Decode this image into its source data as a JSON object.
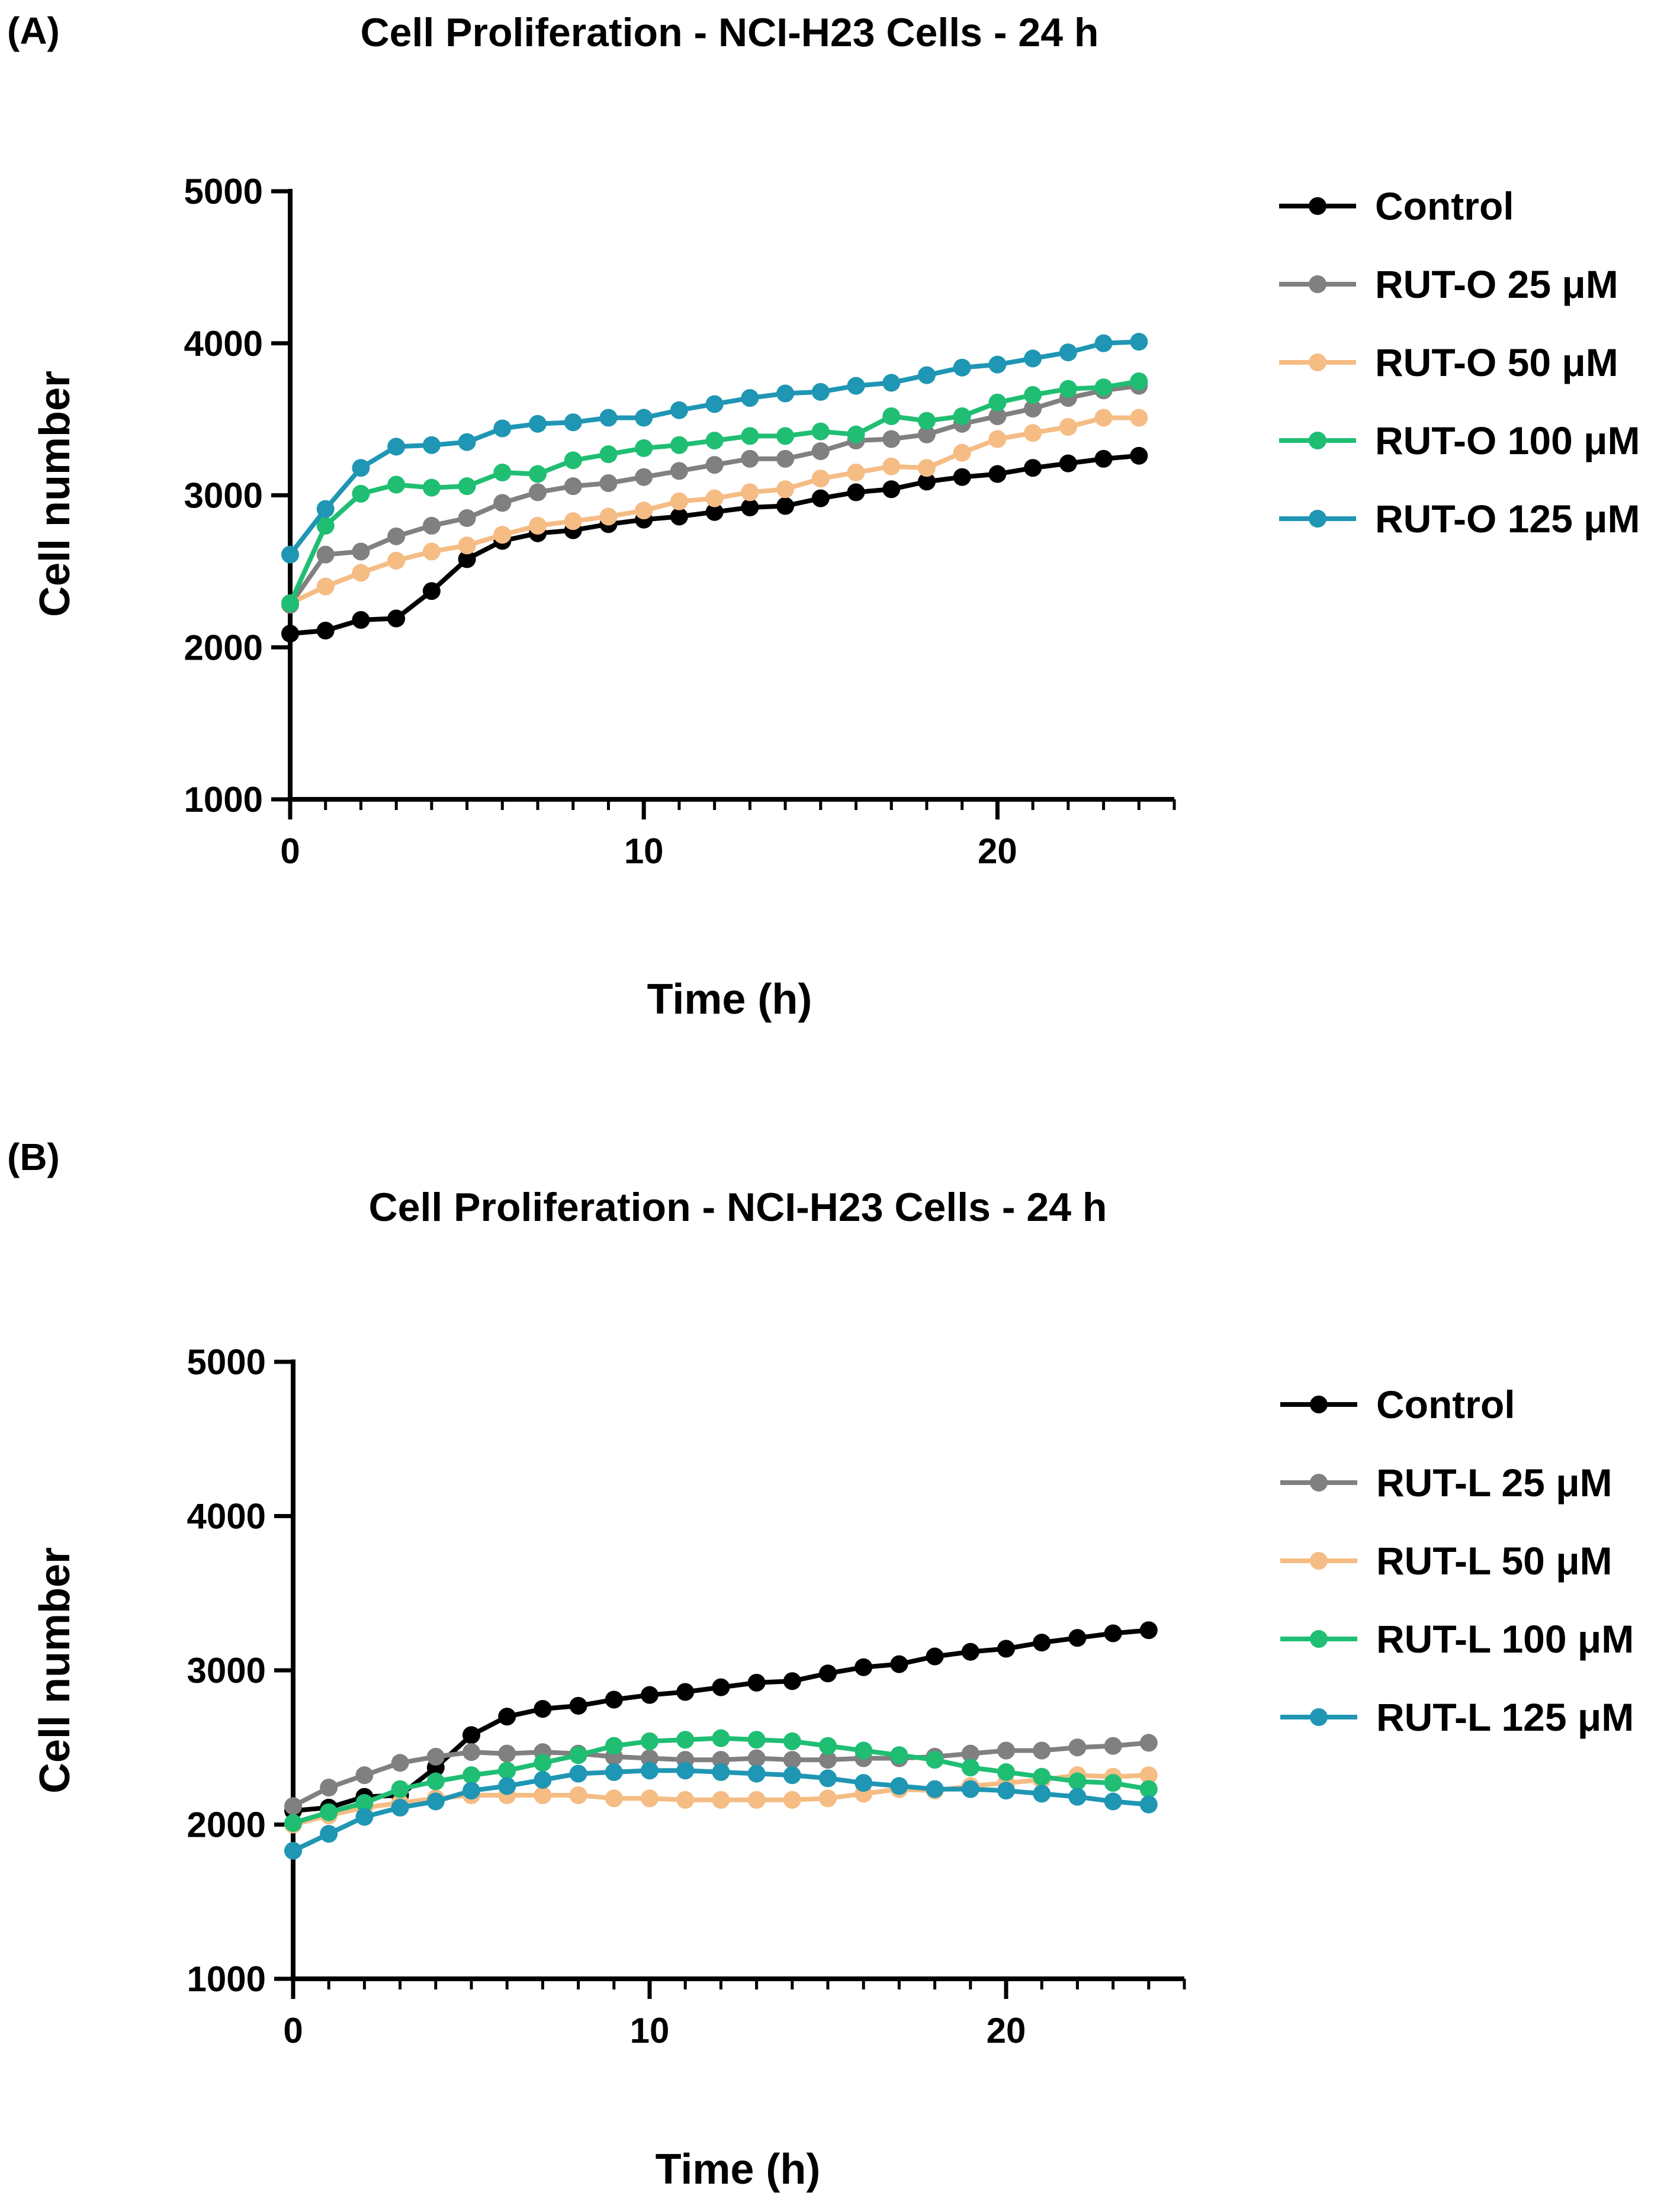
{
  "chart_data": [
    {
      "type": "line",
      "panel_label": "(A)",
      "title": "Cell Proliferation - NCI-H23 Cells - 24 h",
      "xlabel": "Time (h)",
      "ylabel": "Cell number",
      "xlim": [
        0,
        25
      ],
      "ylim": [
        1000,
        5000
      ],
      "xticks": [
        0,
        10,
        20
      ],
      "yticks": [
        1000,
        2000,
        3000,
        4000,
        5000
      ],
      "x": [
        0,
        1,
        2,
        3,
        4,
        5,
        6,
        7,
        8,
        9,
        10,
        11,
        12,
        13,
        14,
        15,
        16,
        17,
        18,
        19,
        20,
        21,
        22,
        23,
        24
      ],
      "legend_position": "right",
      "series": [
        {
          "name": "Control",
          "color": "#000000",
          "values": [
            2090,
            2110,
            2180,
            2190,
            2370,
            2580,
            2700,
            2750,
            2770,
            2810,
            2840,
            2860,
            2890,
            2920,
            2930,
            2980,
            3020,
            3040,
            3090,
            3120,
            3140,
            3180,
            3210,
            3240,
            3260
          ]
        },
        {
          "name": "RUT-O 25 μM",
          "color": "#808080",
          "values": [
            2280,
            2610,
            2630,
            2730,
            2800,
            2850,
            2950,
            3020,
            3060,
            3080,
            3120,
            3160,
            3200,
            3240,
            3240,
            3290,
            3360,
            3370,
            3400,
            3470,
            3520,
            3570,
            3640,
            3690,
            3720
          ]
        },
        {
          "name": "RUT-O 50 μM",
          "color": "#f5bc84",
          "values": [
            2290,
            2400,
            2490,
            2570,
            2630,
            2670,
            2740,
            2800,
            2830,
            2860,
            2900,
            2960,
            2980,
            3020,
            3040,
            3110,
            3150,
            3190,
            3180,
            3280,
            3370,
            3410,
            3450,
            3510,
            3510
          ]
        },
        {
          "name": "RUT-O 100 μM",
          "color": "#1fbe73",
          "values": [
            2290,
            2800,
            3010,
            3070,
            3050,
            3060,
            3150,
            3140,
            3230,
            3270,
            3310,
            3330,
            3360,
            3390,
            3390,
            3420,
            3400,
            3520,
            3490,
            3520,
            3610,
            3660,
            3700,
            3710,
            3750
          ]
        },
        {
          "name": "RUT-O 125 μM",
          "color": "#1f96b3",
          "values": [
            2610,
            2910,
            3180,
            3320,
            3330,
            3350,
            3440,
            3470,
            3480,
            3510,
            3510,
            3560,
            3600,
            3640,
            3670,
            3680,
            3720,
            3740,
            3790,
            3840,
            3860,
            3900,
            3940,
            4000,
            4010
          ]
        }
      ]
    },
    {
      "type": "line",
      "panel_label": "(B)",
      "title": "Cell Proliferation - NCI-H23 Cells - 24 h",
      "xlabel": "Time (h)",
      "ylabel": "Cell number",
      "xlim": [
        0,
        25
      ],
      "ylim": [
        1000,
        5000
      ],
      "xticks": [
        0,
        10,
        20
      ],
      "yticks": [
        1000,
        2000,
        3000,
        4000,
        5000
      ],
      "x": [
        0,
        1,
        2,
        3,
        4,
        5,
        6,
        7,
        8,
        9,
        10,
        11,
        12,
        13,
        14,
        15,
        16,
        17,
        18,
        19,
        20,
        21,
        22,
        23,
        24
      ],
      "legend_position": "right",
      "series": [
        {
          "name": "Control",
          "color": "#000000",
          "values": [
            2090,
            2110,
            2180,
            2190,
            2370,
            2580,
            2700,
            2750,
            2770,
            2810,
            2840,
            2860,
            2890,
            2920,
            2930,
            2980,
            3020,
            3040,
            3090,
            3120,
            3140,
            3180,
            3210,
            3240,
            3260
          ]
        },
        {
          "name": "RUT-L 25 μM",
          "color": "#808080",
          "values": [
            2120,
            2240,
            2320,
            2400,
            2440,
            2470,
            2460,
            2470,
            2460,
            2440,
            2430,
            2420,
            2420,
            2430,
            2420,
            2420,
            2430,
            2430,
            2440,
            2460,
            2480,
            2480,
            2500,
            2510,
            2530
          ]
        },
        {
          "name": "RUT-L 50 μM",
          "color": "#f5bc84",
          "values": [
            2000,
            2060,
            2110,
            2140,
            2170,
            2190,
            2190,
            2190,
            2190,
            2170,
            2170,
            2160,
            2160,
            2160,
            2160,
            2170,
            2200,
            2230,
            2220,
            2250,
            2270,
            2290,
            2320,
            2310,
            2320
          ]
        },
        {
          "name": "RUT-L 100 μM",
          "color": "#1fbe73",
          "values": [
            2010,
            2080,
            2140,
            2230,
            2280,
            2320,
            2350,
            2400,
            2450,
            2510,
            2540,
            2550,
            2560,
            2550,
            2540,
            2510,
            2480,
            2450,
            2420,
            2370,
            2340,
            2310,
            2280,
            2270,
            2230
          ]
        },
        {
          "name": "RUT-L 125 μM",
          "color": "#1f96b3",
          "values": [
            1830,
            1940,
            2050,
            2110,
            2150,
            2220,
            2250,
            2290,
            2330,
            2340,
            2350,
            2350,
            2340,
            2330,
            2320,
            2300,
            2270,
            2250,
            2230,
            2230,
            2220,
            2200,
            2180,
            2150,
            2130
          ]
        }
      ]
    }
  ]
}
